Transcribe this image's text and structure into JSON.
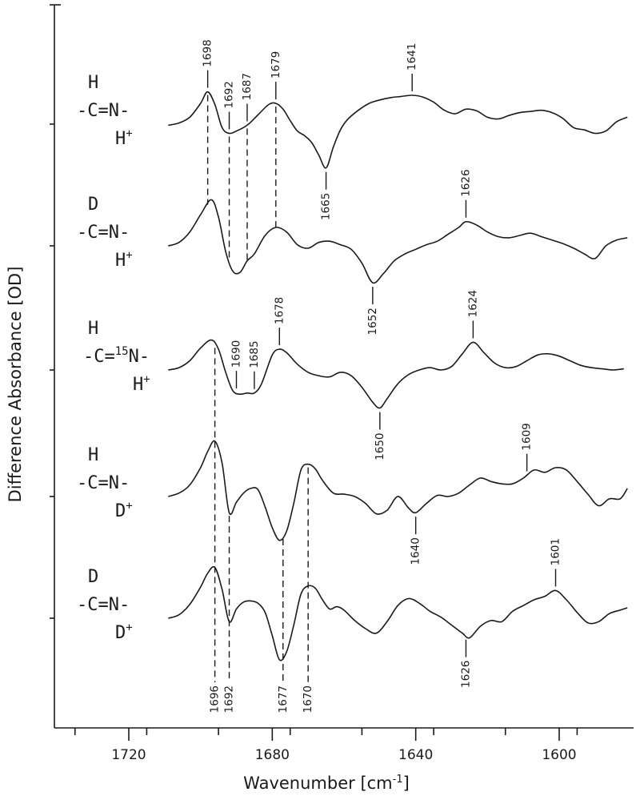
{
  "chart_data": {
    "type": "line",
    "xlabel": "Wavenumber [cm",
    "xlabel_sup": "-1",
    "xlabel_end": "]",
    "ylabel": "Difference Absorbance [OD]",
    "x_range": [
      1735,
      1580
    ],
    "x_reversed": true,
    "x_ticks": [
      1720,
      1680,
      1640,
      1600
    ],
    "x_tick_labels": [
      "1720",
      "1680",
      "1640",
      "1600"
    ],
    "grid": false,
    "series": [
      {
        "id": "s1",
        "labels": [
          "H",
          "-C=N-",
          "H+"
        ],
        "x": [
          1709,
          1706,
          1703,
          1700,
          1698,
          1696,
          1694,
          1692,
          1690,
          1687,
          1684,
          1681,
          1679,
          1677,
          1675,
          1673,
          1671,
          1669,
          1667,
          1665,
          1663,
          1661,
          1659,
          1656,
          1653,
          1650,
          1647,
          1644,
          1641,
          1638,
          1635,
          1632,
          1629,
          1626,
          1623,
          1620,
          1617,
          1614,
          1611,
          1608,
          1605,
          1602,
          1599,
          1596,
          1593,
          1590,
          1587,
          1584,
          1581
        ],
        "y": [
          -0.2,
          0.2,
          1.2,
          3.6,
          5.6,
          3.4,
          -0.6,
          -1.6,
          -1.2,
          -0.2,
          1.6,
          3.4,
          3.6,
          2.6,
          0.6,
          -1.2,
          -2.0,
          -3.2,
          -5.4,
          -7.6,
          -4.0,
          -1.0,
          0.8,
          2.4,
          3.6,
          4.2,
          4.6,
          4.8,
          5.0,
          4.7,
          3.8,
          2.4,
          1.8,
          2.6,
          2.3,
          1.2,
          0.9,
          1.5,
          2.0,
          2.2,
          2.4,
          2.0,
          1.0,
          -0.6,
          -1.0,
          -1.6,
          -1.2,
          0.4,
          1.2
        ]
      },
      {
        "id": "s2",
        "labels": [
          "D",
          "-C=N-",
          "H+"
        ],
        "x": [
          1709,
          1706,
          1703,
          1700,
          1697,
          1695,
          1693,
          1691,
          1689,
          1687,
          1685,
          1682,
          1679,
          1676,
          1673,
          1670,
          1667,
          1664,
          1661,
          1658,
          1655,
          1652,
          1649,
          1646,
          1643,
          1640,
          1637,
          1634,
          1631,
          1628,
          1626,
          1623,
          1620,
          1617,
          1614,
          1611,
          1608,
          1605,
          1602,
          1599,
          1596,
          1593,
          1590,
          1587,
          1584,
          1581
        ],
        "y": [
          0.0,
          0.6,
          2.4,
          5.4,
          8.0,
          5.0,
          -1.0,
          -4.4,
          -4.6,
          -2.6,
          -1.4,
          1.8,
          3.2,
          2.4,
          0.2,
          -0.4,
          0.6,
          0.8,
          0.2,
          -0.6,
          -3.0,
          -6.4,
          -4.8,
          -2.6,
          -1.4,
          -0.6,
          0.2,
          0.8,
          2.0,
          3.2,
          4.2,
          3.6,
          2.4,
          1.6,
          1.4,
          1.8,
          2.2,
          1.6,
          1.0,
          0.4,
          -0.4,
          -1.4,
          -2.2,
          0.0,
          1.0,
          1.4
        ]
      },
      {
        "id": "s3",
        "labels": [
          "H",
          "-C=15N-",
          "H+"
        ],
        "x": [
          1709,
          1706,
          1703,
          1700,
          1697,
          1695,
          1693,
          1691,
          1689,
          1687,
          1685,
          1683,
          1680,
          1678,
          1676,
          1673,
          1670,
          1667,
          1664,
          1661,
          1658,
          1655,
          1652,
          1650,
          1648,
          1645,
          1642,
          1639,
          1636,
          1633,
          1630,
          1627,
          1624,
          1621,
          1618,
          1615,
          1612,
          1609,
          1606,
          1603,
          1600,
          1597,
          1594,
          1591,
          1588,
          1585,
          1582
        ],
        "y": [
          0.0,
          0.4,
          1.6,
          3.8,
          5.2,
          3.6,
          -0.4,
          -3.6,
          -4.2,
          -4.0,
          -4.0,
          -2.4,
          2.6,
          3.6,
          3.0,
          1.0,
          -0.4,
          -1.0,
          -1.2,
          -0.4,
          -1.0,
          -3.0,
          -5.6,
          -6.6,
          -5.0,
          -2.4,
          -0.8,
          0.0,
          0.4,
          0.0,
          0.6,
          2.8,
          4.8,
          3.0,
          1.2,
          0.4,
          0.6,
          1.6,
          2.6,
          2.8,
          2.4,
          1.6,
          0.8,
          0.4,
          0.2,
          0.0,
          0.2
        ]
      },
      {
        "id": "s4",
        "labels": [
          "H",
          "-C=N-",
          "D+"
        ],
        "x": [
          1709,
          1706,
          1703,
          1700,
          1698,
          1696,
          1694,
          1692,
          1690,
          1688,
          1686,
          1684,
          1682,
          1680,
          1678,
          1676,
          1674,
          1672,
          1670,
          1668,
          1666,
          1663,
          1660,
          1657,
          1654,
          1651,
          1648,
          1645,
          1642,
          1640,
          1637,
          1634,
          1631,
          1628,
          1625,
          1622,
          1619,
          1616,
          1613,
          1610,
          1607,
          1604,
          1601,
          1598,
          1595,
          1592,
          1589,
          1586,
          1583,
          1581
        ],
        "y": [
          0.0,
          0.6,
          2.0,
          5.0,
          7.8,
          9.6,
          5.8,
          -2.8,
          -1.0,
          0.6,
          1.4,
          1.2,
          -1.8,
          -5.4,
          -7.6,
          -6.0,
          -1.2,
          4.6,
          5.6,
          4.8,
          2.8,
          0.6,
          0.4,
          0.0,
          -1.2,
          -3.0,
          -2.4,
          0.0,
          -2.0,
          -2.8,
          -1.2,
          0.2,
          0.0,
          0.6,
          2.0,
          3.2,
          2.6,
          2.2,
          2.2,
          3.2,
          4.6,
          4.2,
          5.0,
          4.6,
          2.6,
          0.4,
          -1.6,
          -0.4,
          -0.4,
          1.4
        ]
      },
      {
        "id": "s5",
        "labels": [
          "D",
          "-C=N-",
          "D+"
        ],
        "x": [
          1709,
          1706,
          1703,
          1700,
          1698,
          1696,
          1694,
          1692,
          1690,
          1688,
          1686,
          1684,
          1682,
          1680,
          1678,
          1676,
          1674,
          1672,
          1670,
          1668,
          1666,
          1664,
          1662,
          1660,
          1657,
          1654,
          1651,
          1648,
          1645,
          1642,
          1639,
          1636,
          1633,
          1630,
          1627,
          1625,
          1622,
          1619,
          1616,
          1613,
          1610,
          1607,
          1604,
          1601,
          1598,
          1595,
          1592,
          1589,
          1586,
          1583,
          1581
        ],
        "y": [
          0.0,
          0.6,
          2.4,
          5.4,
          7.8,
          8.8,
          5.0,
          -0.6,
          1.6,
          2.8,
          3.0,
          2.6,
          1.0,
          -3.0,
          -7.2,
          -5.8,
          -1.2,
          4.2,
          5.6,
          5.2,
          3.2,
          1.6,
          2.0,
          1.4,
          -0.4,
          -1.8,
          -2.6,
          -0.6,
          2.2,
          3.4,
          2.6,
          1.2,
          0.2,
          -1.2,
          -2.6,
          -3.4,
          -1.4,
          -0.4,
          -0.6,
          1.2,
          2.2,
          3.2,
          3.8,
          4.8,
          3.2,
          1.0,
          -0.8,
          -0.6,
          0.8,
          1.4,
          1.8
        ]
      }
    ],
    "guides": [
      {
        "from": "s1",
        "to": "s2",
        "x": 1698
      },
      {
        "from": "s1",
        "to": "s2",
        "x": 1692
      },
      {
        "from": "s1",
        "to": "s2",
        "x": 1687
      },
      {
        "from": "s1",
        "to": "s2",
        "x": 1679
      },
      {
        "from": "s3",
        "to": "s5",
        "x": 1696
      },
      {
        "from": "s4",
        "to": "s5",
        "x": 1692
      },
      {
        "from": "s4",
        "to": "s5",
        "x": 1677
      },
      {
        "from": "s4",
        "to": "s5",
        "x": 1670
      }
    ],
    "annotations": [
      {
        "series": "s1",
        "x": 1698,
        "text": "1698",
        "side": "above"
      },
      {
        "series": "s1",
        "x": 1692,
        "text": "1692",
        "side": "above"
      },
      {
        "series": "s1",
        "x": 1687,
        "text": "1687",
        "side": "above"
      },
      {
        "series": "s1",
        "x": 1679,
        "text": "1679",
        "side": "above"
      },
      {
        "series": "s1",
        "x": 1641,
        "text": "1641",
        "side": "above"
      },
      {
        "series": "s1",
        "x": 1665,
        "text": "1665",
        "side": "below"
      },
      {
        "series": "s2",
        "x": 1626,
        "text": "1626",
        "side": "above"
      },
      {
        "series": "s2",
        "x": 1652,
        "text": "1652",
        "side": "below"
      },
      {
        "series": "s3",
        "x": 1678,
        "text": "1678",
        "side": "above"
      },
      {
        "series": "s3",
        "x": 1624,
        "text": "1624",
        "side": "above"
      },
      {
        "series": "s3",
        "x": 1690,
        "text": "1690",
        "side": "above"
      },
      {
        "series": "s3",
        "x": 1685,
        "text": "1685",
        "side": "above"
      },
      {
        "series": "s3",
        "x": 1650,
        "text": "1650",
        "side": "below"
      },
      {
        "series": "s4",
        "x": 1609,
        "text": "1609",
        "side": "above"
      },
      {
        "series": "s4",
        "x": 1640,
        "text": "1640",
        "side": "below"
      },
      {
        "series": "s5",
        "x": 1601,
        "text": "1601",
        "side": "above"
      },
      {
        "series": "s5",
        "x": 1626,
        "text": "1626",
        "side": "below"
      },
      {
        "series": "s5",
        "x": 1696,
        "text": "1696",
        "side": "bottom"
      },
      {
        "series": "s5",
        "x": 1692,
        "text": "1692",
        "side": "bottom"
      },
      {
        "series": "s5",
        "x": 1677,
        "text": "1677",
        "side": "bottom"
      },
      {
        "series": "s5",
        "x": 1670,
        "text": "1670",
        "side": "bottom"
      }
    ]
  }
}
